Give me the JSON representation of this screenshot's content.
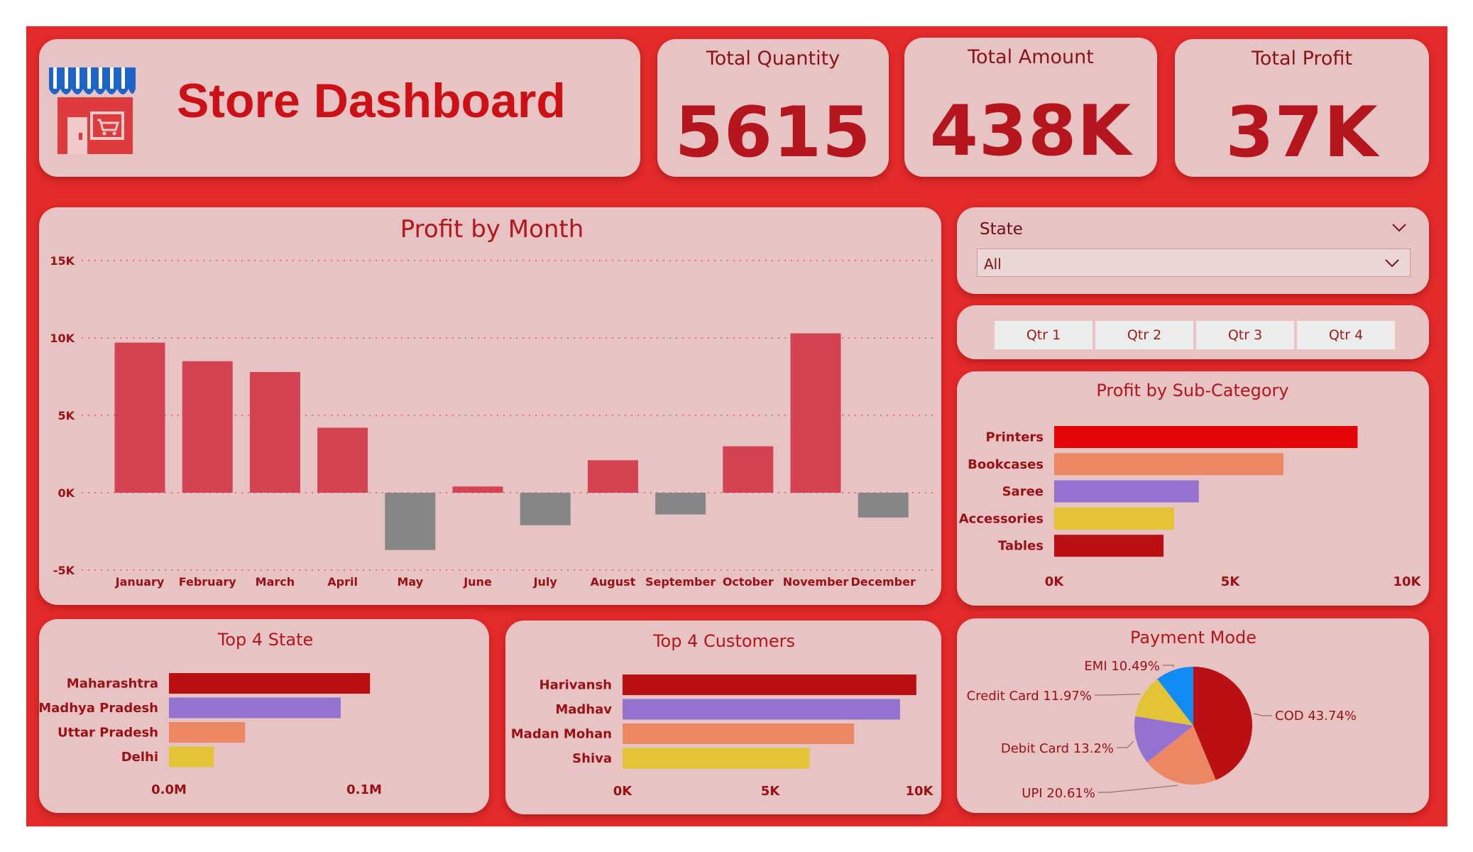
{
  "header": {
    "title": "Store Dashboard"
  },
  "kpis": [
    {
      "label": "Total Quantity",
      "value": "5615"
    },
    {
      "label": "Total Amount",
      "value": "438K"
    },
    {
      "label": "Total Profit",
      "value": "37K"
    }
  ],
  "filters": {
    "state_label": "State",
    "state_value": "All",
    "quarters": [
      "Qtr 1",
      "Qtr 2",
      "Qtr 3",
      "Qtr 4"
    ]
  },
  "colors": {
    "frame": "#e42a2a",
    "card": "#e7c3c4",
    "positive_bar": "#d34352",
    "negative_bar": "#868686",
    "title_red": "#cc1016"
  },
  "chart_data": [
    {
      "id": "profit-by-month",
      "type": "bar",
      "title": "Profit by Month",
      "categories": [
        "January",
        "February",
        "March",
        "April",
        "May",
        "June",
        "July",
        "August",
        "September",
        "October",
        "November",
        "December"
      ],
      "values": [
        9700,
        8500,
        7800,
        4200,
        -3700,
        400,
        -2100,
        2100,
        -1400,
        3000,
        10300,
        -1600
      ],
      "yticks": [
        "15K",
        "10K",
        "5K",
        "0K",
        "-5K"
      ],
      "ylim": [
        -5000,
        15000
      ],
      "grid": true,
      "positive_color": "#d34352",
      "negative_color": "#868686"
    },
    {
      "id": "profit-by-subcategory",
      "type": "bar",
      "orientation": "horizontal",
      "title": "Profit by Sub-Category",
      "categories": [
        "Printers",
        "Bookcases",
        "Saree",
        "Accessories",
        "Tables"
      ],
      "values": [
        8600,
        6500,
        4100,
        3400,
        3100
      ],
      "colors": [
        "#e20407",
        "#eb8763",
        "#9473d0",
        "#e2c436",
        "#bb1013"
      ],
      "xticks": [
        "0K",
        "5K",
        "10K"
      ],
      "xlim": [
        0,
        10000
      ]
    },
    {
      "id": "top-4-state",
      "type": "bar",
      "orientation": "horizontal",
      "title": "Top 4 State",
      "categories": [
        "Maharashtra",
        "Madhya Pradesh",
        "Uttar Pradesh",
        "Delhi"
      ],
      "values": [
        0.103,
        0.088,
        0.039,
        0.023
      ],
      "colors": [
        "#bb1013",
        "#9473d0",
        "#eb8763",
        "#e2c436"
      ],
      "xticks": [
        "0.0M",
        "0.1M"
      ],
      "xlim": [
        0,
        0.1
      ]
    },
    {
      "id": "top-4-customers",
      "type": "bar",
      "orientation": "horizontal",
      "title": "Top 4 Customers",
      "categories": [
        "Harivansh",
        "Madhav",
        "Madan Mohan",
        "Shiva"
      ],
      "values": [
        9900,
        9350,
        7800,
        6300
      ],
      "colors": [
        "#bb1013",
        "#9473d0",
        "#eb8763",
        "#e2c436"
      ],
      "xticks": [
        "0K",
        "5K",
        "10K"
      ],
      "xlim": [
        0,
        10000
      ]
    },
    {
      "id": "payment-mode",
      "type": "pie",
      "title": "Payment Mode",
      "labels": [
        "COD",
        "UPI",
        "Debit Card",
        "Credit Card",
        "EMI"
      ],
      "values": [
        43.74,
        20.61,
        13.2,
        11.97,
        10.49
      ],
      "value_labels": [
        "COD 43.74%",
        "UPI 20.61%",
        "Debit Card 13.2%",
        "Credit Card 11.97%",
        "EMI 10.49%"
      ],
      "colors": [
        "#bb1013",
        "#eb8763",
        "#9473d0",
        "#e2c436",
        "#128cf5"
      ]
    }
  ]
}
